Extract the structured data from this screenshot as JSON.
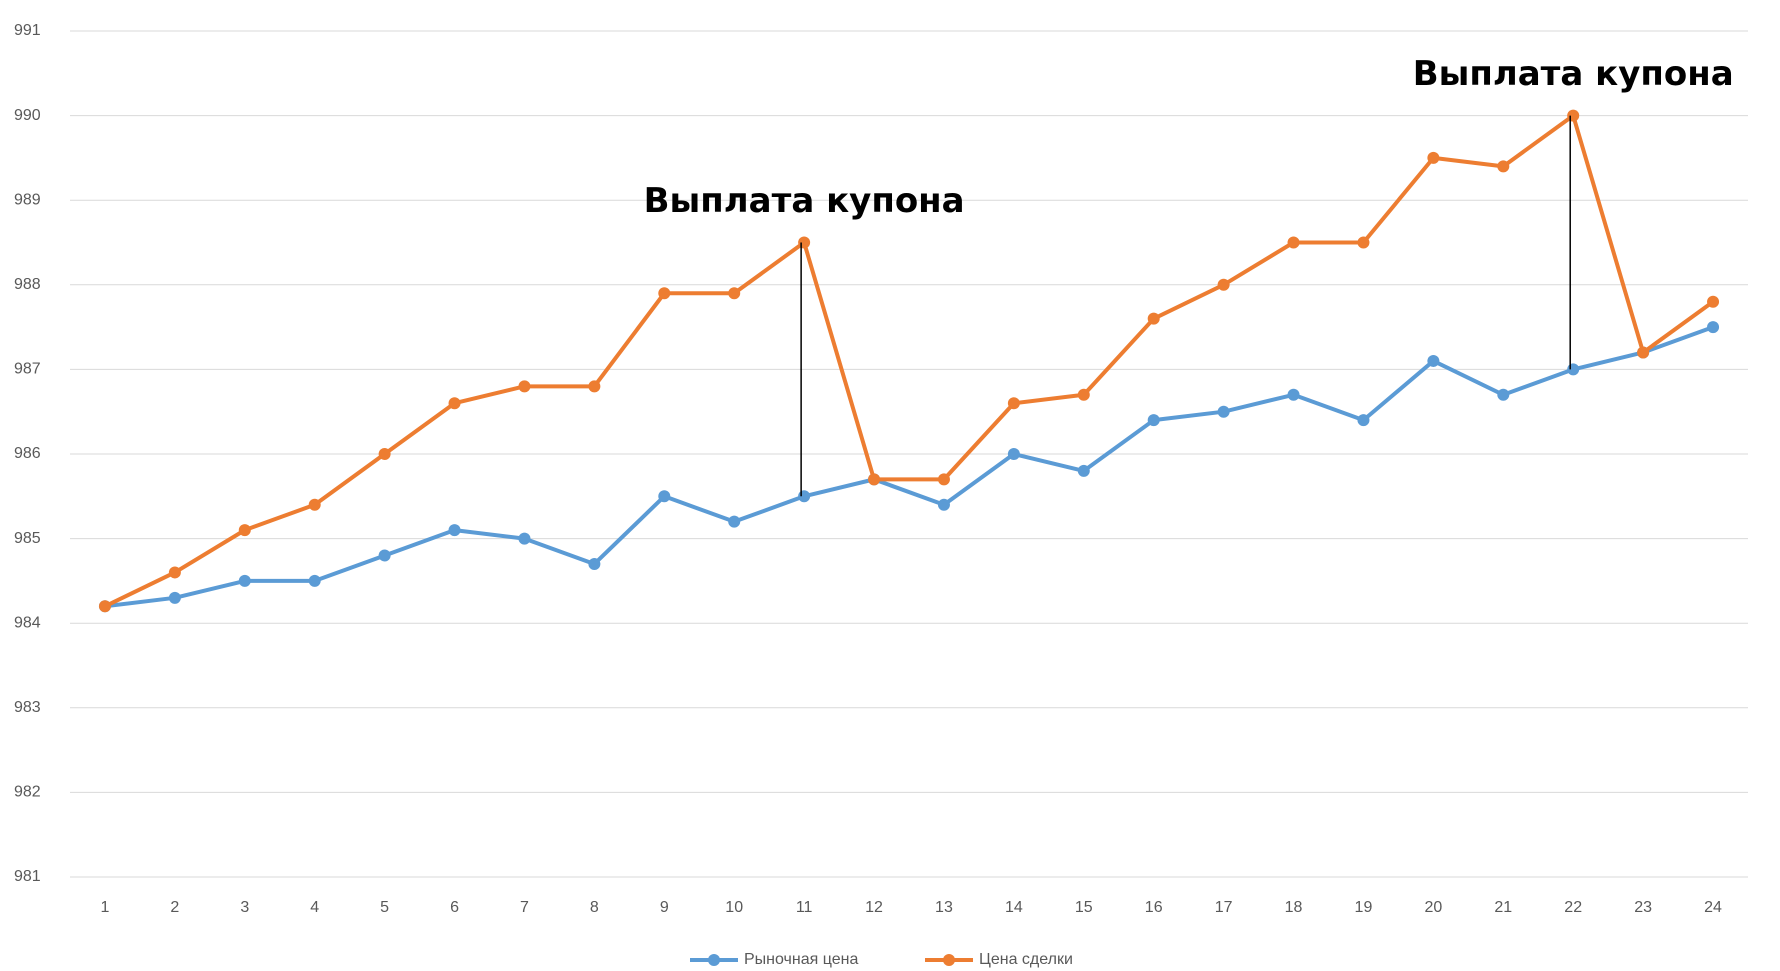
{
  "chart_data": {
    "type": "line",
    "categories": [
      "1",
      "2",
      "3",
      "4",
      "5",
      "6",
      "7",
      "8",
      "9",
      "10",
      "11",
      "12",
      "13",
      "14",
      "15",
      "16",
      "17",
      "18",
      "19",
      "20",
      "21",
      "22",
      "23",
      "24"
    ],
    "series": [
      {
        "name": "Рыночная цена",
        "color": "#5b9bd5",
        "values": [
          984.2,
          984.3,
          984.5,
          984.5,
          984.8,
          985.1,
          985.0,
          984.7,
          985.5,
          985.2,
          985.5,
          985.7,
          985.4,
          986.0,
          985.8,
          986.4,
          986.5,
          986.7,
          986.4,
          987.1,
          986.7,
          987.0,
          987.2,
          987.5
        ]
      },
      {
        "name": "Цена сделки",
        "color": "#ed7d31",
        "values": [
          984.2,
          984.6,
          985.1,
          985.4,
          986.0,
          986.6,
          986.8,
          986.8,
          987.9,
          987.9,
          988.5,
          985.7,
          985.7,
          986.6,
          986.7,
          987.6,
          988.0,
          988.5,
          988.5,
          989.5,
          989.4,
          990.0,
          987.2,
          987.8
        ]
      }
    ],
    "ylim": [
      981,
      991
    ],
    "yticks": [
      981,
      982,
      983,
      984,
      985,
      986,
      987,
      988,
      989,
      990,
      991
    ],
    "grid": true,
    "legend": "bottom",
    "annotations": [
      {
        "text": "Выплата купона",
        "x": 11
      },
      {
        "text": "Выплата купона",
        "x": 22
      }
    ]
  }
}
